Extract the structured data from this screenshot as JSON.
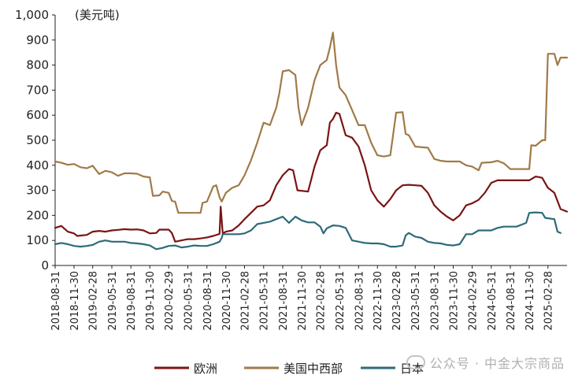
{
  "chart_data": {
    "type": "line",
    "unit_label": "(美元吨)",
    "ylim": [
      0,
      1000
    ],
    "yticks": [
      0,
      100,
      200,
      300,
      400,
      500,
      600,
      700,
      800,
      900,
      1000
    ],
    "ytick_labels": [
      "0",
      "100",
      "200",
      "300",
      "400",
      "500",
      "600",
      "700",
      "800",
      "900",
      "1,000"
    ],
    "xlim": [
      "2018-08-31",
      "2025-05-31"
    ],
    "x_tick_labels": [
      "2018-08-31",
      "2018-11-30",
      "2019-02-28",
      "2019-05-31",
      "2019-08-31",
      "2019-11-30",
      "2020-02-29",
      "2020-05-31",
      "2020-08-31",
      "2020-11-30",
      "2021-02-28",
      "2021-05-31",
      "2021-08-31",
      "2021-11-30",
      "2022-02-28",
      "2022-05-31",
      "2022-08-31",
      "2022-11-30",
      "2023-02-28",
      "2023-05-31",
      "2023-08-31",
      "2023-11-30",
      "2024-02-29",
      "2024-05-31",
      "2024-08-31",
      "2024-11-30",
      "2025-02-28"
    ],
    "legend_position": "bottom",
    "grid": false,
    "series": [
      {
        "name": "欧洲",
        "color": "#7a1515",
        "points": [
          [
            "2018-08-31",
            150
          ],
          [
            "2018-09-30",
            158
          ],
          [
            "2018-10-31",
            135
          ],
          [
            "2018-11-30",
            128
          ],
          [
            "2018-12-15",
            118
          ],
          [
            "2019-01-31",
            122
          ],
          [
            "2019-02-28",
            135
          ],
          [
            "2019-03-31",
            138
          ],
          [
            "2019-04-30",
            135
          ],
          [
            "2019-05-31",
            140
          ],
          [
            "2019-06-30",
            142
          ],
          [
            "2019-07-31",
            145
          ],
          [
            "2019-08-31",
            143
          ],
          [
            "2019-09-30",
            144
          ],
          [
            "2019-10-31",
            140
          ],
          [
            "2019-11-30",
            128
          ],
          [
            "2019-12-31",
            130
          ],
          [
            "2020-01-15",
            143
          ],
          [
            "2020-02-29",
            143
          ],
          [
            "2020-03-15",
            130
          ],
          [
            "2020-03-31",
            95
          ],
          [
            "2020-04-30",
            100
          ],
          [
            "2020-05-31",
            105
          ],
          [
            "2020-06-30",
            105
          ],
          [
            "2020-07-31",
            108
          ],
          [
            "2020-08-31",
            112
          ],
          [
            "2020-09-30",
            118
          ],
          [
            "2020-10-31",
            126
          ],
          [
            "2020-11-05",
            235
          ],
          [
            "2020-11-15",
            128
          ],
          [
            "2020-11-30",
            135
          ],
          [
            "2020-12-31",
            140
          ],
          [
            "2021-01-31",
            160
          ],
          [
            "2021-02-28",
            185
          ],
          [
            "2021-03-31",
            210
          ],
          [
            "2021-04-30",
            235
          ],
          [
            "2021-05-31",
            240
          ],
          [
            "2021-06-30",
            260
          ],
          [
            "2021-07-31",
            320
          ],
          [
            "2021-08-31",
            360
          ],
          [
            "2021-09-30",
            385
          ],
          [
            "2021-10-20",
            380
          ],
          [
            "2021-11-10",
            300
          ],
          [
            "2021-12-31",
            295
          ],
          [
            "2022-01-31",
            395
          ],
          [
            "2022-02-28",
            460
          ],
          [
            "2022-03-31",
            480
          ],
          [
            "2022-04-15",
            570
          ],
          [
            "2022-04-30",
            585
          ],
          [
            "2022-05-15",
            610
          ],
          [
            "2022-05-31",
            605
          ],
          [
            "2022-06-30",
            520
          ],
          [
            "2022-07-31",
            510
          ],
          [
            "2022-08-31",
            475
          ],
          [
            "2022-09-30",
            400
          ],
          [
            "2022-10-31",
            300
          ],
          [
            "2022-11-30",
            260
          ],
          [
            "2022-12-31",
            235
          ],
          [
            "2023-01-31",
            265
          ],
          [
            "2023-02-28",
            300
          ],
          [
            "2023-03-31",
            320
          ],
          [
            "2023-04-30",
            322
          ],
          [
            "2023-05-31",
            320
          ],
          [
            "2023-06-30",
            318
          ],
          [
            "2023-07-31",
            290
          ],
          [
            "2023-08-31",
            240
          ],
          [
            "2023-09-30",
            215
          ],
          [
            "2023-10-31",
            195
          ],
          [
            "2023-11-30",
            180
          ],
          [
            "2023-12-31",
            200
          ],
          [
            "2024-01-31",
            240
          ],
          [
            "2024-02-29",
            248
          ],
          [
            "2024-03-31",
            262
          ],
          [
            "2024-04-30",
            290
          ],
          [
            "2024-05-31",
            330
          ],
          [
            "2024-06-30",
            340
          ],
          [
            "2024-07-31",
            340
          ],
          [
            "2024-08-31",
            340
          ],
          [
            "2024-09-30",
            340
          ],
          [
            "2024-10-31",
            340
          ],
          [
            "2024-11-30",
            340
          ],
          [
            "2024-12-31",
            355
          ],
          [
            "2025-01-31",
            350
          ],
          [
            "2025-02-28",
            310
          ],
          [
            "2025-03-31",
            290
          ],
          [
            "2025-04-30",
            225
          ],
          [
            "2025-05-31",
            215
          ]
        ]
      },
      {
        "name": "美国中西部",
        "color": "#a07a48",
        "points": [
          [
            "2018-08-31",
            415
          ],
          [
            "2018-09-30",
            410
          ],
          [
            "2018-10-31",
            402
          ],
          [
            "2018-11-30",
            405
          ],
          [
            "2018-12-31",
            392
          ],
          [
            "2019-01-31",
            388
          ],
          [
            "2019-02-28",
            398
          ],
          [
            "2019-03-31",
            365
          ],
          [
            "2019-04-30",
            378
          ],
          [
            "2019-05-31",
            372
          ],
          [
            "2019-06-30",
            358
          ],
          [
            "2019-07-31",
            368
          ],
          [
            "2019-08-31",
            368
          ],
          [
            "2019-09-30",
            366
          ],
          [
            "2019-10-31",
            355
          ],
          [
            "2019-11-30",
            352
          ],
          [
            "2019-12-15",
            278
          ],
          [
            "2020-01-15",
            280
          ],
          [
            "2020-01-31",
            295
          ],
          [
            "2020-02-29",
            290
          ],
          [
            "2020-03-15",
            258
          ],
          [
            "2020-03-31",
            255
          ],
          [
            "2020-04-15",
            210
          ],
          [
            "2020-05-31",
            210
          ],
          [
            "2020-06-30",
            210
          ],
          [
            "2020-07-31",
            210
          ],
          [
            "2020-08-10",
            250
          ],
          [
            "2020-08-31",
            255
          ],
          [
            "2020-09-30",
            315
          ],
          [
            "2020-10-15",
            320
          ],
          [
            "2020-10-31",
            272
          ],
          [
            "2020-11-10",
            255
          ],
          [
            "2020-11-30",
            290
          ],
          [
            "2020-12-31",
            310
          ],
          [
            "2021-01-31",
            320
          ],
          [
            "2021-02-28",
            360
          ],
          [
            "2021-03-31",
            420
          ],
          [
            "2021-04-30",
            490
          ],
          [
            "2021-05-31",
            570
          ],
          [
            "2021-06-30",
            560
          ],
          [
            "2021-07-31",
            630
          ],
          [
            "2021-08-15",
            690
          ],
          [
            "2021-08-31",
            775
          ],
          [
            "2021-09-30",
            780
          ],
          [
            "2021-10-31",
            760
          ],
          [
            "2021-11-15",
            630
          ],
          [
            "2021-11-30",
            560
          ],
          [
            "2021-12-31",
            630
          ],
          [
            "2022-01-31",
            740
          ],
          [
            "2022-02-28",
            800
          ],
          [
            "2022-03-31",
            820
          ],
          [
            "2022-04-15",
            870
          ],
          [
            "2022-04-30",
            930
          ],
          [
            "2022-05-15",
            800
          ],
          [
            "2022-05-31",
            710
          ],
          [
            "2022-06-30",
            680
          ],
          [
            "2022-07-31",
            620
          ],
          [
            "2022-08-31",
            560
          ],
          [
            "2022-09-30",
            560
          ],
          [
            "2022-10-31",
            490
          ],
          [
            "2022-11-30",
            440
          ],
          [
            "2022-12-31",
            435
          ],
          [
            "2023-01-31",
            440
          ],
          [
            "2023-02-28",
            610
          ],
          [
            "2023-03-31",
            612
          ],
          [
            "2023-04-15",
            525
          ],
          [
            "2023-04-30",
            520
          ],
          [
            "2023-05-31",
            475
          ],
          [
            "2023-06-30",
            472
          ],
          [
            "2023-07-31",
            470
          ],
          [
            "2023-08-31",
            425
          ],
          [
            "2023-09-30",
            418
          ],
          [
            "2023-10-31",
            415
          ],
          [
            "2023-11-30",
            415
          ],
          [
            "2023-12-31",
            415
          ],
          [
            "2024-01-31",
            400
          ],
          [
            "2024-02-29",
            395
          ],
          [
            "2024-03-31",
            380
          ],
          [
            "2024-04-15",
            410
          ],
          [
            "2024-05-31",
            412
          ],
          [
            "2024-06-30",
            418
          ],
          [
            "2024-07-31",
            408
          ],
          [
            "2024-08-31",
            385
          ],
          [
            "2024-09-30",
            385
          ],
          [
            "2024-10-31",
            385
          ],
          [
            "2024-11-30",
            385
          ],
          [
            "2024-12-10",
            480
          ],
          [
            "2024-12-31",
            478
          ],
          [
            "2025-01-31",
            500
          ],
          [
            "2025-02-15",
            500
          ],
          [
            "2025-02-28",
            845
          ],
          [
            "2025-03-31",
            845
          ],
          [
            "2025-04-15",
            800
          ],
          [
            "2025-04-30",
            830
          ],
          [
            "2025-05-31",
            830
          ]
        ]
      },
      {
        "name": "日本",
        "color": "#2d6b77",
        "points": [
          [
            "2018-08-31",
            85
          ],
          [
            "2018-09-30",
            90
          ],
          [
            "2018-10-31",
            85
          ],
          [
            "2018-11-30",
            78
          ],
          [
            "2018-12-31",
            75
          ],
          [
            "2019-01-31",
            78
          ],
          [
            "2019-02-28",
            82
          ],
          [
            "2019-03-31",
            95
          ],
          [
            "2019-04-30",
            100
          ],
          [
            "2019-05-31",
            95
          ],
          [
            "2019-06-30",
            95
          ],
          [
            "2019-07-31",
            95
          ],
          [
            "2019-08-31",
            90
          ],
          [
            "2019-09-30",
            88
          ],
          [
            "2019-10-31",
            85
          ],
          [
            "2019-11-30",
            80
          ],
          [
            "2019-12-31",
            65
          ],
          [
            "2020-01-31",
            70
          ],
          [
            "2020-02-29",
            78
          ],
          [
            "2020-03-31",
            80
          ],
          [
            "2020-04-30",
            72
          ],
          [
            "2020-05-31",
            75
          ],
          [
            "2020-06-30",
            80
          ],
          [
            "2020-07-31",
            78
          ],
          [
            "2020-08-31",
            78
          ],
          [
            "2020-09-30",
            85
          ],
          [
            "2020-10-31",
            95
          ],
          [
            "2020-11-10",
            110
          ],
          [
            "2020-11-15",
            125
          ],
          [
            "2020-12-31",
            125
          ],
          [
            "2021-01-31",
            125
          ],
          [
            "2021-02-28",
            128
          ],
          [
            "2021-03-31",
            140
          ],
          [
            "2021-04-30",
            165
          ],
          [
            "2021-05-31",
            170
          ],
          [
            "2021-06-30",
            175
          ],
          [
            "2021-07-31",
            185
          ],
          [
            "2021-08-31",
            195
          ],
          [
            "2021-09-30",
            170
          ],
          [
            "2021-10-31",
            195
          ],
          [
            "2021-11-30",
            180
          ],
          [
            "2021-12-31",
            172
          ],
          [
            "2022-01-31",
            172
          ],
          [
            "2022-02-28",
            155
          ],
          [
            "2022-03-15",
            128
          ],
          [
            "2022-03-31",
            148
          ],
          [
            "2022-04-30",
            160
          ],
          [
            "2022-05-31",
            158
          ],
          [
            "2022-06-30",
            150
          ],
          [
            "2022-07-31",
            100
          ],
          [
            "2022-08-31",
            95
          ],
          [
            "2022-09-30",
            90
          ],
          [
            "2022-10-31",
            88
          ],
          [
            "2022-11-30",
            88
          ],
          [
            "2022-12-31",
            85
          ],
          [
            "2023-01-31",
            75
          ],
          [
            "2023-02-28",
            75
          ],
          [
            "2023-03-31",
            80
          ],
          [
            "2023-04-15",
            120
          ],
          [
            "2023-04-30",
            130
          ],
          [
            "2023-05-31",
            115
          ],
          [
            "2023-06-30",
            110
          ],
          [
            "2023-07-31",
            95
          ],
          [
            "2023-08-31",
            90
          ],
          [
            "2023-09-30",
            88
          ],
          [
            "2023-10-31",
            82
          ],
          [
            "2023-11-30",
            80
          ],
          [
            "2023-12-31",
            85
          ],
          [
            "2024-01-31",
            125
          ],
          [
            "2024-02-29",
            125
          ],
          [
            "2024-03-31",
            140
          ],
          [
            "2024-04-30",
            140
          ],
          [
            "2024-05-31",
            140
          ],
          [
            "2024-06-30",
            150
          ],
          [
            "2024-07-31",
            155
          ],
          [
            "2024-08-31",
            155
          ],
          [
            "2024-09-30",
            155
          ],
          [
            "2024-10-31",
            165
          ],
          [
            "2024-11-15",
            170
          ],
          [
            "2024-11-30",
            210
          ],
          [
            "2024-12-31",
            212
          ],
          [
            "2025-01-31",
            210
          ],
          [
            "2025-02-15",
            190
          ],
          [
            "2025-03-31",
            185
          ],
          [
            "2025-04-15",
            135
          ],
          [
            "2025-04-30",
            130
          ]
        ]
      }
    ]
  },
  "watermark": {
    "text": "公众号 · 中金大宗商品"
  }
}
